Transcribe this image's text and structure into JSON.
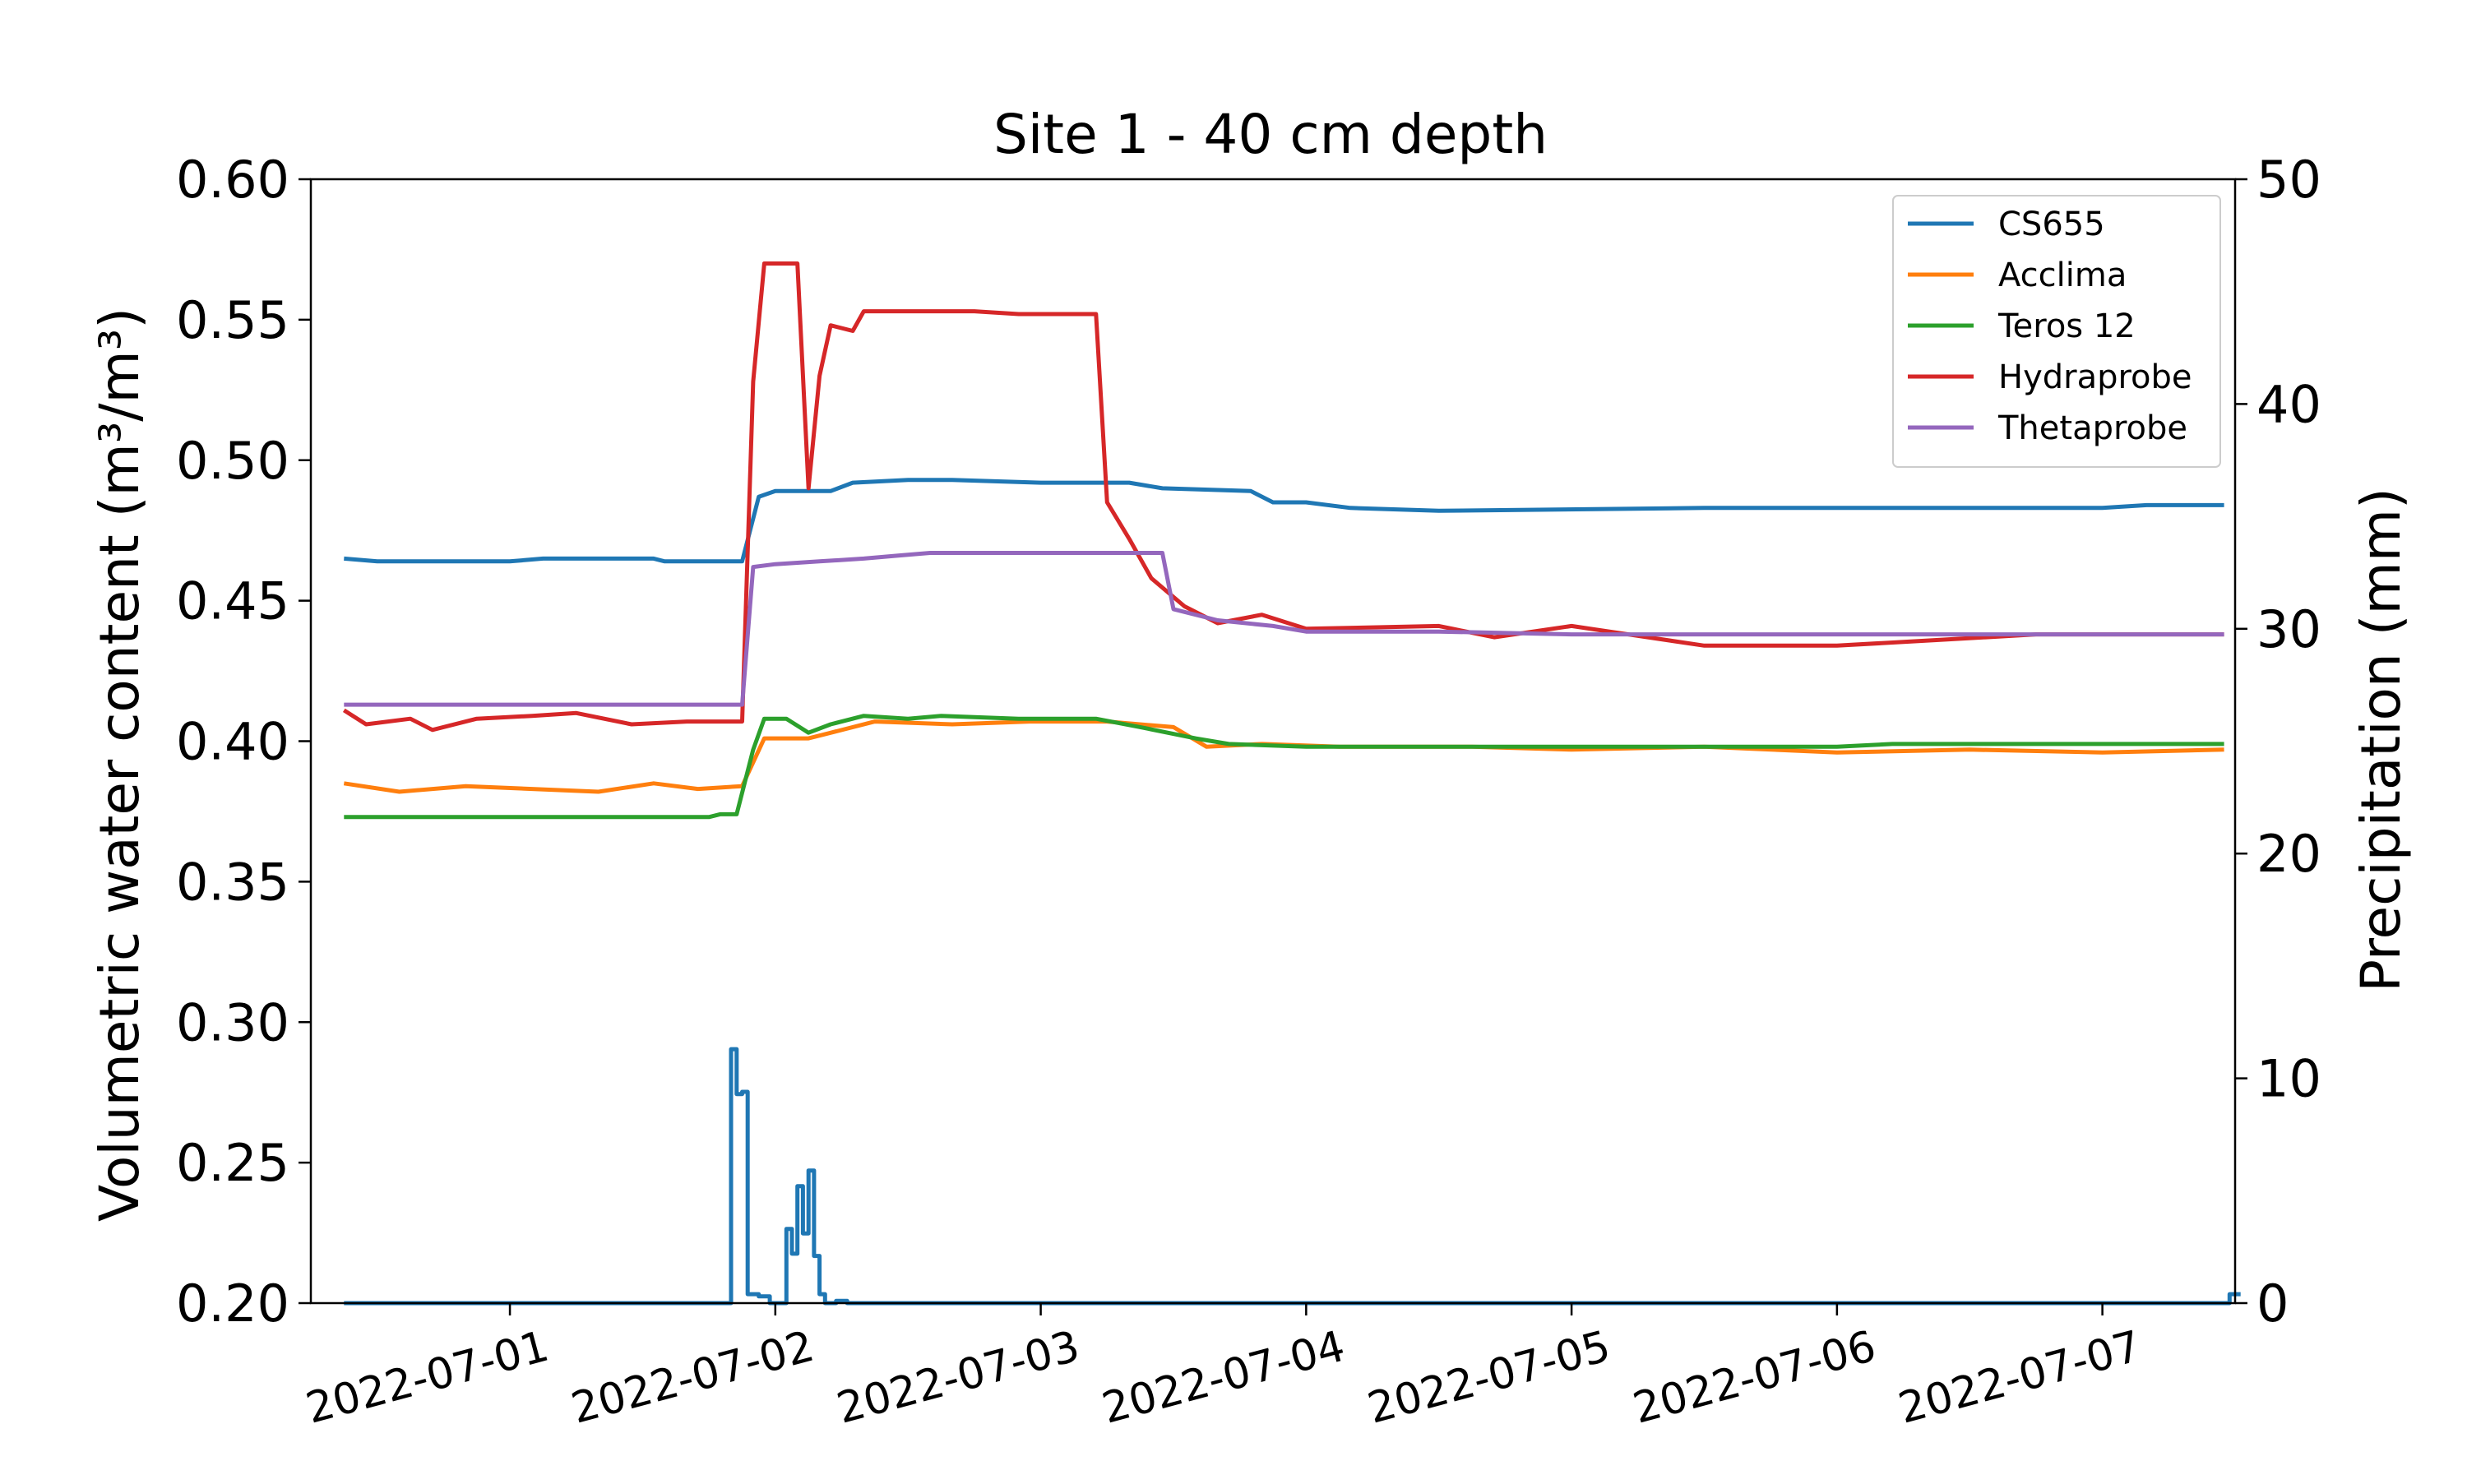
{
  "chart_data": {
    "type": "line",
    "title": "Site 1 - 40 cm depth",
    "ylabel_left": "Volumetric water content (m³/m³)",
    "ylabel_right": "Precipitation (mm)",
    "xlabel": "",
    "x_range": [
      "2022-06-30 06:00",
      "2022-07-07 12:00"
    ],
    "ylim_left": [
      0.2,
      0.6
    ],
    "ylim_right": [
      0,
      50
    ],
    "yticks_left": [
      "0.20",
      "0.25",
      "0.30",
      "0.35",
      "0.40",
      "0.45",
      "0.50",
      "0.55",
      "0.60"
    ],
    "yticks_right": [
      "0",
      "10",
      "20",
      "30",
      "40",
      "50"
    ],
    "xticks": [
      "2022-07-01",
      "2022-07-02",
      "2022-07-03",
      "2022-07-04",
      "2022-07-05",
      "2022-07-06",
      "2022-07-07"
    ],
    "grid": false,
    "legend_position": "top-right",
    "series": [
      {
        "name": "CS655",
        "axis": "left",
        "color": "#1f77b4",
        "points": [
          [
            "2022-06-30 09:00",
            0.465
          ],
          [
            "2022-06-30 12:00",
            0.464
          ],
          [
            "2022-07-01 00:00",
            0.464
          ],
          [
            "2022-07-01 03:00",
            0.465
          ],
          [
            "2022-07-01 13:00",
            0.465
          ],
          [
            "2022-07-01 14:00",
            0.464
          ],
          [
            "2022-07-01 21:00",
            0.464
          ],
          [
            "2022-07-01 22:30",
            0.487
          ],
          [
            "2022-07-02 00:00",
            0.489
          ],
          [
            "2022-07-02 05:00",
            0.489
          ],
          [
            "2022-07-02 07:00",
            0.492
          ],
          [
            "2022-07-02 12:00",
            0.493
          ],
          [
            "2022-07-02 16:00",
            0.493
          ],
          [
            "2022-07-03 00:00",
            0.492
          ],
          [
            "2022-07-03 08:00",
            0.492
          ],
          [
            "2022-07-03 11:00",
            0.49
          ],
          [
            "2022-07-03 19:00",
            0.489
          ],
          [
            "2022-07-03 21:00",
            0.485
          ],
          [
            "2022-07-04 00:00",
            0.485
          ],
          [
            "2022-07-04 04:00",
            0.483
          ],
          [
            "2022-07-04 12:00",
            0.482
          ],
          [
            "2022-07-05 12:00",
            0.483
          ],
          [
            "2022-07-06 00:00",
            0.483
          ],
          [
            "2022-07-07 00:00",
            0.483
          ],
          [
            "2022-07-07 04:00",
            0.484
          ],
          [
            "2022-07-07 11:00",
            0.484
          ]
        ]
      },
      {
        "name": "Acclima",
        "axis": "left",
        "color": "#ff7f0e",
        "points": [
          [
            "2022-06-30 09:00",
            0.385
          ],
          [
            "2022-06-30 14:00",
            0.382
          ],
          [
            "2022-06-30 20:00",
            0.384
          ],
          [
            "2022-07-01 02:00",
            0.383
          ],
          [
            "2022-07-01 08:00",
            0.382
          ],
          [
            "2022-07-01 13:00",
            0.385
          ],
          [
            "2022-07-01 17:00",
            0.383
          ],
          [
            "2022-07-01 21:00",
            0.384
          ],
          [
            "2022-07-01 23:00",
            0.401
          ],
          [
            "2022-07-02 03:00",
            0.401
          ],
          [
            "2022-07-02 09:00",
            0.407
          ],
          [
            "2022-07-02 16:00",
            0.406
          ],
          [
            "2022-07-02 23:00",
            0.407
          ],
          [
            "2022-07-03 06:00",
            0.407
          ],
          [
            "2022-07-03 12:00",
            0.405
          ],
          [
            "2022-07-03 15:00",
            0.398
          ],
          [
            "2022-07-03 20:00",
            0.399
          ],
          [
            "2022-07-04 03:00",
            0.398
          ],
          [
            "2022-07-04 15:00",
            0.398
          ],
          [
            "2022-07-05 00:00",
            0.397
          ],
          [
            "2022-07-05 12:00",
            0.398
          ],
          [
            "2022-07-06 00:00",
            0.396
          ],
          [
            "2022-07-06 12:00",
            0.397
          ],
          [
            "2022-07-07 00:00",
            0.396
          ],
          [
            "2022-07-07 11:00",
            0.397
          ]
        ]
      },
      {
        "name": "Teros 12",
        "axis": "left",
        "color": "#2ca02c",
        "points": [
          [
            "2022-06-30 09:00",
            0.373
          ],
          [
            "2022-07-01 18:00",
            0.373
          ],
          [
            "2022-07-01 19:00",
            0.374
          ],
          [
            "2022-07-01 20:30",
            0.374
          ],
          [
            "2022-07-01 22:00",
            0.397
          ],
          [
            "2022-07-01 23:00",
            0.408
          ],
          [
            "2022-07-02 01:00",
            0.408
          ],
          [
            "2022-07-02 03:00",
            0.403
          ],
          [
            "2022-07-02 05:00",
            0.406
          ],
          [
            "2022-07-02 08:00",
            0.409
          ],
          [
            "2022-07-02 12:00",
            0.408
          ],
          [
            "2022-07-02 15:00",
            0.409
          ],
          [
            "2022-07-02 22:00",
            0.408
          ],
          [
            "2022-07-03 05:00",
            0.408
          ],
          [
            "2022-07-03 09:00",
            0.405
          ],
          [
            "2022-07-03 14:00",
            0.401
          ],
          [
            "2022-07-03 17:00",
            0.399
          ],
          [
            "2022-07-04 00:00",
            0.398
          ],
          [
            "2022-07-05 00:00",
            0.398
          ],
          [
            "2022-07-06 00:00",
            0.398
          ],
          [
            "2022-07-06 05:00",
            0.399
          ],
          [
            "2022-07-07 11:00",
            0.399
          ]
        ]
      },
      {
        "name": "Hydraprobe",
        "axis": "left",
        "color": "#d62728",
        "points": [
          [
            "2022-06-30 09:00",
            0.411
          ],
          [
            "2022-06-30 11:00",
            0.406
          ],
          [
            "2022-06-30 15:00",
            0.408
          ],
          [
            "2022-06-30 17:00",
            0.404
          ],
          [
            "2022-06-30 21:00",
            0.408
          ],
          [
            "2022-07-01 02:00",
            0.409
          ],
          [
            "2022-07-01 06:00",
            0.41
          ],
          [
            "2022-07-01 11:00",
            0.406
          ],
          [
            "2022-07-01 16:00",
            0.407
          ],
          [
            "2022-07-01 21:00",
            0.407
          ],
          [
            "2022-07-01 22:00",
            0.528
          ],
          [
            "2022-07-01 23:00",
            0.57
          ],
          [
            "2022-07-02 02:00",
            0.57
          ],
          [
            "2022-07-02 03:00",
            0.49
          ],
          [
            "2022-07-02 04:00",
            0.53
          ],
          [
            "2022-07-02 05:00",
            0.548
          ],
          [
            "2022-07-02 07:00",
            0.546
          ],
          [
            "2022-07-02 08:00",
            0.553
          ],
          [
            "2022-07-02 11:00",
            0.553
          ],
          [
            "2022-07-02 18:00",
            0.553
          ],
          [
            "2022-07-02 22:00",
            0.552
          ],
          [
            "2022-07-03 05:00",
            0.552
          ],
          [
            "2022-07-03 06:00",
            0.485
          ],
          [
            "2022-07-03 08:00",
            0.472
          ],
          [
            "2022-07-03 10:00",
            0.458
          ],
          [
            "2022-07-03 13:00",
            0.448
          ],
          [
            "2022-07-03 16:00",
            0.442
          ],
          [
            "2022-07-03 20:00",
            0.445
          ],
          [
            "2022-07-04 00:00",
            0.44
          ],
          [
            "2022-07-04 12:00",
            0.441
          ],
          [
            "2022-07-04 17:00",
            0.437
          ],
          [
            "2022-07-05 00:00",
            0.441
          ],
          [
            "2022-07-05 12:00",
            0.434
          ],
          [
            "2022-07-06 00:00",
            0.434
          ],
          [
            "2022-07-06 09:00",
            0.436
          ],
          [
            "2022-07-06 18:00",
            0.438
          ],
          [
            "2022-07-07 11:00",
            0.438
          ]
        ]
      },
      {
        "name": "Thetaprobe",
        "axis": "left",
        "color": "#9467bd",
        "points": [
          [
            "2022-06-30 09:00",
            0.413
          ],
          [
            "2022-07-01 21:00",
            0.413
          ],
          [
            "2022-07-01 22:00",
            0.462
          ],
          [
            "2022-07-02 00:00",
            0.463
          ],
          [
            "2022-07-02 04:00",
            0.464
          ],
          [
            "2022-07-02 08:00",
            0.465
          ],
          [
            "2022-07-02 11:00",
            0.466
          ],
          [
            "2022-07-02 14:00",
            0.467
          ],
          [
            "2022-07-03 11:00",
            0.467
          ],
          [
            "2022-07-03 12:00",
            0.447
          ],
          [
            "2022-07-03 16:00",
            0.443
          ],
          [
            "2022-07-03 21:00",
            0.441
          ],
          [
            "2022-07-04 00:00",
            0.439
          ],
          [
            "2022-07-04 12:00",
            0.439
          ],
          [
            "2022-07-05 00:00",
            0.438
          ],
          [
            "2022-07-06 12:00",
            0.438
          ],
          [
            "2022-07-07 11:00",
            0.438
          ]
        ]
      },
      {
        "name": "",
        "axis": "right",
        "style": "step",
        "color": "#1f77b4",
        "points": [
          [
            "2022-06-30 09:00",
            0
          ],
          [
            "2022-07-01 19:30",
            0
          ],
          [
            "2022-07-01 20:00",
            11.3
          ],
          [
            "2022-07-01 20:30",
            9.3
          ],
          [
            "2022-07-01 21:00",
            9.4
          ],
          [
            "2022-07-01 21:30",
            0.4
          ],
          [
            "2022-07-01 22:30",
            0.3
          ],
          [
            "2022-07-01 23:30",
            0
          ],
          [
            "2022-07-02 00:30",
            0
          ],
          [
            "2022-07-02 01:00",
            3.3
          ],
          [
            "2022-07-02 01:30",
            2.2
          ],
          [
            "2022-07-02 02:00",
            5.2
          ],
          [
            "2022-07-02 02:30",
            3.1
          ],
          [
            "2022-07-02 03:00",
            5.9
          ],
          [
            "2022-07-02 03:30",
            2.1
          ],
          [
            "2022-07-02 04:00",
            0.4
          ],
          [
            "2022-07-02 04:30",
            0
          ],
          [
            "2022-07-02 05:30",
            0.1
          ],
          [
            "2022-07-02 06:30",
            0
          ],
          [
            "2022-07-07 11:00",
            0
          ],
          [
            "2022-07-07 11:30",
            0.4
          ],
          [
            "2022-07-07 12:30",
            0.4
          ]
        ]
      }
    ]
  }
}
